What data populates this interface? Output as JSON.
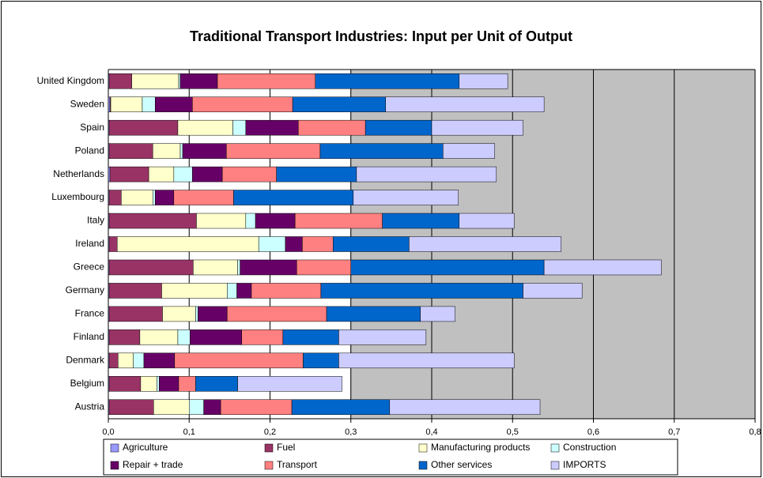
{
  "chart_data": {
    "type": "stacked_barh",
    "title": "Traditional Transport Industries: Input per Unit of Output",
    "categories": [
      "United Kingdom",
      "Sweden",
      "Spain",
      "Poland",
      "Netherlands",
      "Luxembourg",
      "Italy",
      "Ireland",
      "Greece",
      "Germany",
      "France",
      "Finland",
      "Denmark",
      "Belgium",
      "Austria"
    ],
    "series": [
      {
        "name": "Agriculture",
        "color": "#9999ff",
        "values": [
          0.001,
          0.002,
          0.001,
          0.001,
          0.002,
          0.001,
          0.001,
          0.001,
          0.001,
          0.001,
          0.001,
          0.001,
          0.001,
          0.001,
          0.001
        ]
      },
      {
        "name": "Fuel",
        "color": "#993366",
        "values": [
          0.028,
          0.001,
          0.085,
          0.054,
          0.048,
          0.015,
          0.108,
          0.01,
          0.104,
          0.065,
          0.066,
          0.038,
          0.011,
          0.039,
          0.055
        ]
      },
      {
        "name": "Manufacturing products",
        "color": "#ffffcc",
        "values": [
          0.058,
          0.039,
          0.068,
          0.034,
          0.031,
          0.039,
          0.061,
          0.175,
          0.055,
          0.081,
          0.041,
          0.047,
          0.019,
          0.02,
          0.044
        ]
      },
      {
        "name": "Construction",
        "color": "#ccffff",
        "values": [
          0.002,
          0.016,
          0.016,
          0.003,
          0.023,
          0.003,
          0.012,
          0.033,
          0.003,
          0.012,
          0.003,
          0.015,
          0.013,
          0.003,
          0.018
        ]
      },
      {
        "name": "Repair + trade",
        "color": "#660066",
        "values": [
          0.046,
          0.046,
          0.065,
          0.054,
          0.037,
          0.023,
          0.049,
          0.021,
          0.07,
          0.018,
          0.036,
          0.064,
          0.038,
          0.024,
          0.021
        ]
      },
      {
        "name": "Transport",
        "color": "#ff8080",
        "values": [
          0.121,
          0.124,
          0.083,
          0.116,
          0.067,
          0.074,
          0.108,
          0.038,
          0.067,
          0.086,
          0.123,
          0.051,
          0.159,
          0.021,
          0.088
        ]
      },
      {
        "name": "Other services",
        "color": "#0066cc",
        "values": [
          0.178,
          0.115,
          0.082,
          0.152,
          0.099,
          0.148,
          0.095,
          0.094,
          0.239,
          0.25,
          0.116,
          0.069,
          0.044,
          0.052,
          0.121
        ]
      },
      {
        "name": "IMPORTS",
        "color": "#ccccff",
        "values": [
          0.06,
          0.196,
          0.113,
          0.064,
          0.173,
          0.13,
          0.068,
          0.188,
          0.145,
          0.073,
          0.043,
          0.108,
          0.217,
          0.129,
          0.186
        ]
      }
    ],
    "xlim": [
      0,
      0.8
    ],
    "xticks": [
      {
        "value": 0,
        "label": "0,0"
      },
      {
        "value": 0.1,
        "label": "0,1"
      },
      {
        "value": 0.2,
        "label": "0,2"
      },
      {
        "value": 0.3,
        "label": "0,3"
      },
      {
        "value": 0.4,
        "label": "0,4"
      },
      {
        "value": 0.5,
        "label": "0,5"
      },
      {
        "value": 0.6,
        "label": "0,6"
      },
      {
        "value": 0.7,
        "label": "0,7"
      },
      {
        "value": 0.8,
        "label": "0,8"
      }
    ],
    "grid": true,
    "legend": "bottom"
  }
}
